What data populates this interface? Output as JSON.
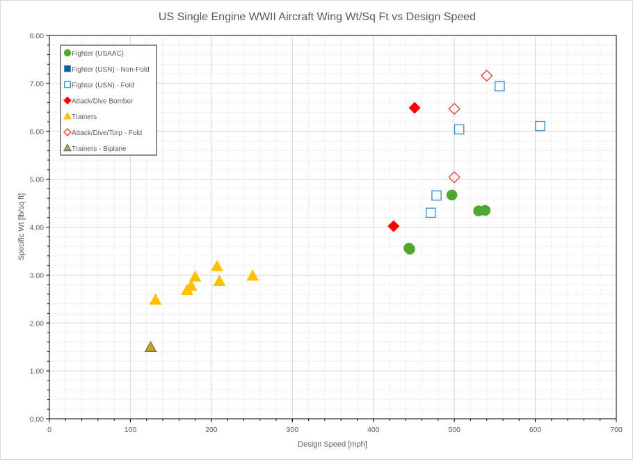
{
  "chart_data": {
    "type": "scatter",
    "title": "US Single Engine WWII Aircraft Wing Wt/Sq Ft vs Design Speed",
    "xlabel": "Design Speed [mph]",
    "ylabel": "Specific Wt [lb/sq ft]",
    "xlim": [
      0,
      700
    ],
    "ylim": [
      0,
      8
    ],
    "xticks": [
      "0",
      "100",
      "200",
      "300",
      "400",
      "500",
      "600",
      "700"
    ],
    "yticks": [
      "0.00",
      "1.00",
      "2.00",
      "3.00",
      "4.00",
      "5.00",
      "6.00",
      "7.00",
      "8.00"
    ],
    "grid": true,
    "legend_position": "top-left",
    "series": [
      {
        "name": "Fighter (USAAC)",
        "marker": "circle",
        "fill": "#4ea72e",
        "stroke": "#4ea72e",
        "points": [
          [
            445,
            3.54
          ],
          [
            444,
            3.56
          ],
          [
            497,
            4.67
          ],
          [
            530,
            4.34
          ],
          [
            538,
            4.35
          ]
        ]
      },
      {
        "name": "Fighter (USN) - Non-Fold",
        "marker": "square",
        "fill": "#156082",
        "stroke": "#0f6fc6",
        "points": []
      },
      {
        "name": "Fighter (USN) - Fold",
        "marker": "square",
        "fill": "none",
        "stroke": "#3a8fcb",
        "points": [
          [
            478,
            4.66
          ],
          [
            471,
            4.3
          ],
          [
            506,
            6.04
          ],
          [
            556,
            6.94
          ],
          [
            606,
            6.11
          ]
        ]
      },
      {
        "name": "Attack/Dive Bomber",
        "marker": "diamond",
        "fill": "#ff0000",
        "stroke": "#ff0000",
        "points": [
          [
            451,
            6.49
          ],
          [
            425,
            4.02
          ]
        ]
      },
      {
        "name": "Trainers",
        "marker": "triangle",
        "fill": "#ffc000",
        "stroke": "#ffc000",
        "points": [
          [
            131,
            2.48
          ],
          [
            170,
            2.68
          ],
          [
            175,
            2.77
          ],
          [
            180,
            2.96
          ],
          [
            207,
            3.18
          ],
          [
            210,
            2.87
          ],
          [
            251,
            2.98
          ]
        ]
      },
      {
        "name": "Attack/Dive/Torp - Fold",
        "marker": "diamond",
        "fill": "none",
        "stroke": "#e8453c",
        "points": [
          [
            500,
            6.47
          ],
          [
            500,
            5.04
          ],
          [
            540,
            7.16
          ]
        ]
      },
      {
        "name": "Trainers - Biplane",
        "marker": "triangle",
        "fill": "#c9a227",
        "stroke": "#6b6b6b",
        "points": [
          [
            125,
            1.49
          ]
        ]
      }
    ]
  }
}
